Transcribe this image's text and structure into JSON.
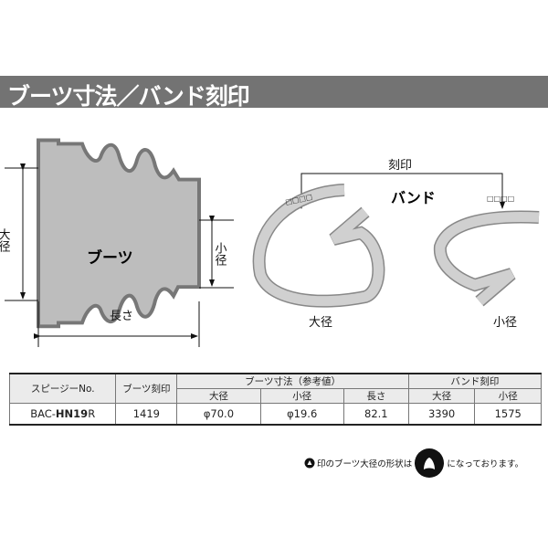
{
  "header": {
    "title": "ブーツ寸法／バンド刻印"
  },
  "diagram": {
    "boot_label": "ブーツ",
    "large_diameter": "大径",
    "small_diameter": "小径",
    "length": "長さ",
    "marking": "刻印",
    "band_label": "バンド",
    "band_large": "大径",
    "band_small": "小径",
    "marking_boxes": "□□□□"
  },
  "table": {
    "col_part_no": "スピージーNo.",
    "col_boot_mark": "ブーツ刻印",
    "group_boot_dims": "ブーツ寸法（参考値）",
    "group_band_mark": "バンド刻印",
    "sub_large": "大径",
    "sub_small": "小径",
    "sub_length": "長さ",
    "sub_band_large": "大径",
    "sub_band_small": "小径",
    "row": {
      "part_prefix": "BAC-",
      "part_bold": "HN19",
      "part_suffix": "R",
      "boot_mark": "1419",
      "large": "φ70.0",
      "small": "φ19.6",
      "length": "82.1",
      "band_large": "3390",
      "band_small": "1575"
    }
  },
  "note": {
    "before": "印のブーツ大径の形状は",
    "after": "になっております。"
  }
}
